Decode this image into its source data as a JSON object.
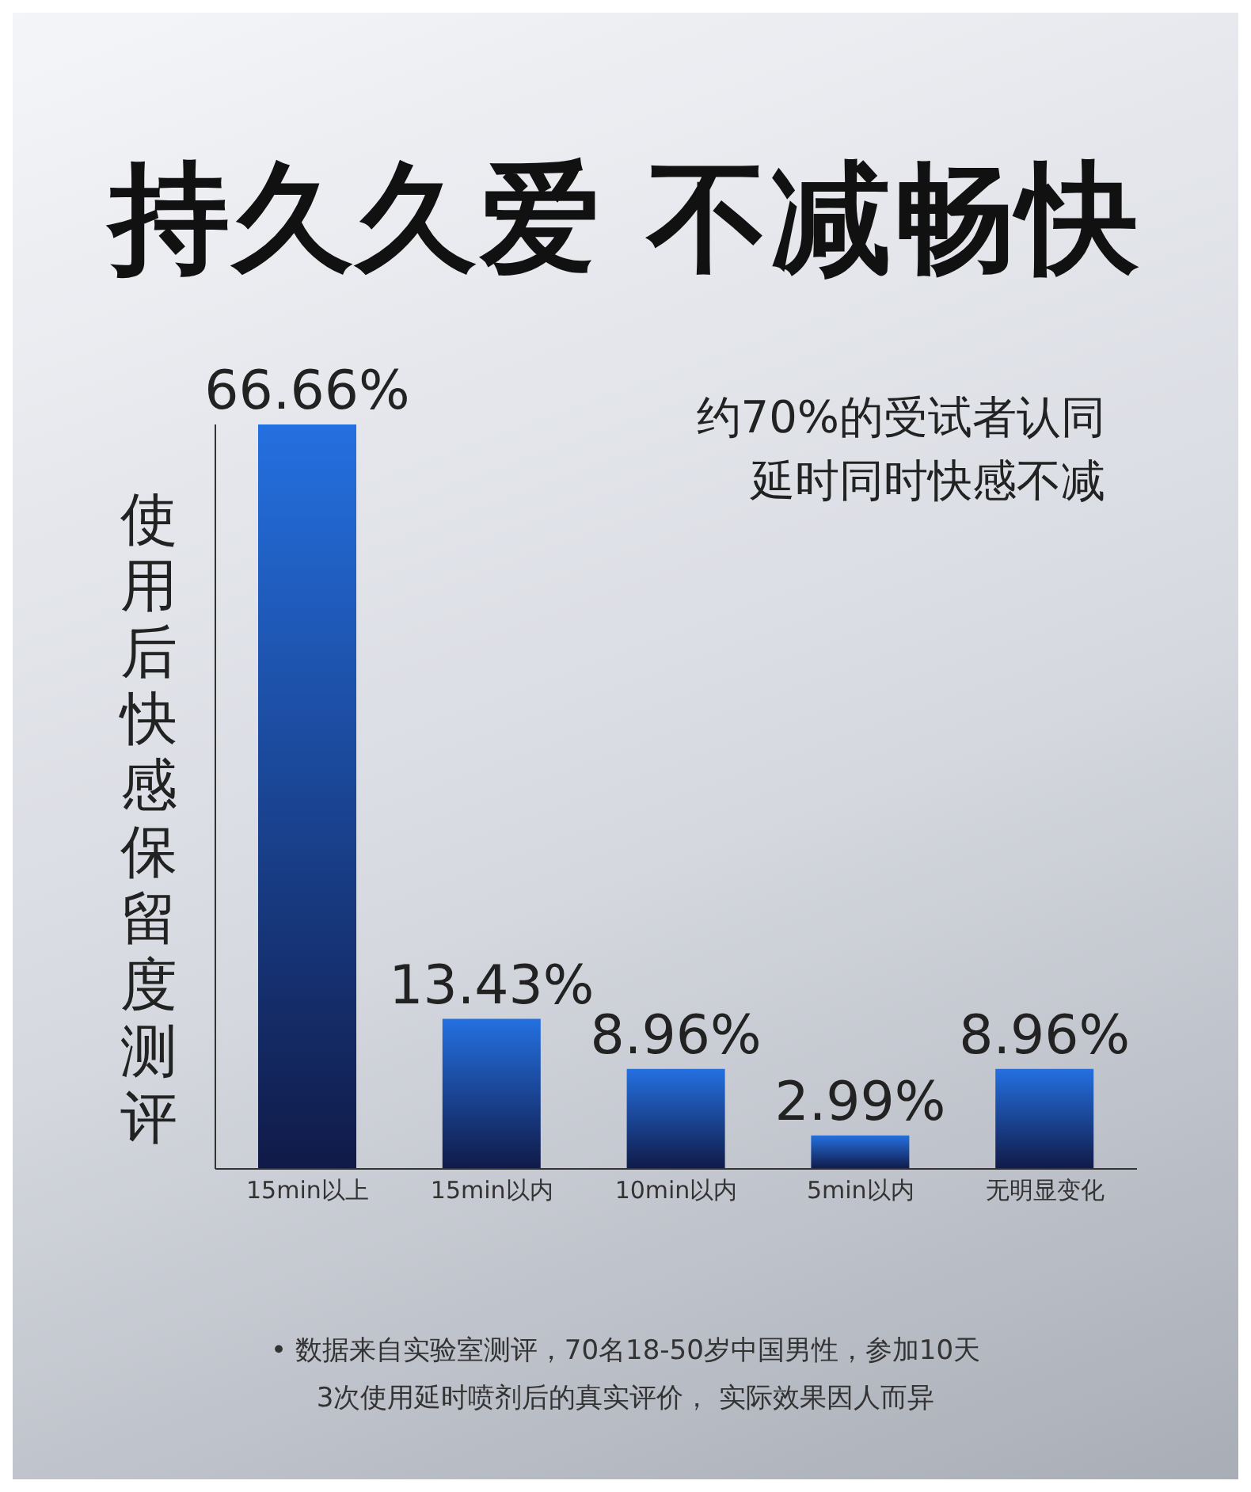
{
  "chart_data": {
    "type": "bar",
    "title": "持久久爱 不减畅快",
    "ylabel": "使用后快感保留度测评",
    "categories": [
      "15min以上",
      "15min以内",
      "10min以内",
      "5min以内",
      "无明显变化"
    ],
    "values": [
      66.66,
      13.43,
      8.96,
      2.99,
      8.96
    ],
    "value_labels": [
      "66.66%",
      "13.43%",
      "8.96%",
      "2.99%",
      "8.96%"
    ],
    "color": "#2470e0",
    "annotations": [
      "约70%的受试者认同延时同时快感不减",
      "• 数据来自实验室测评，70名18-50岁中国男性，参加10天3次使用延时喷剂后的真实评价， 实际效果因人而异"
    ]
  }
}
